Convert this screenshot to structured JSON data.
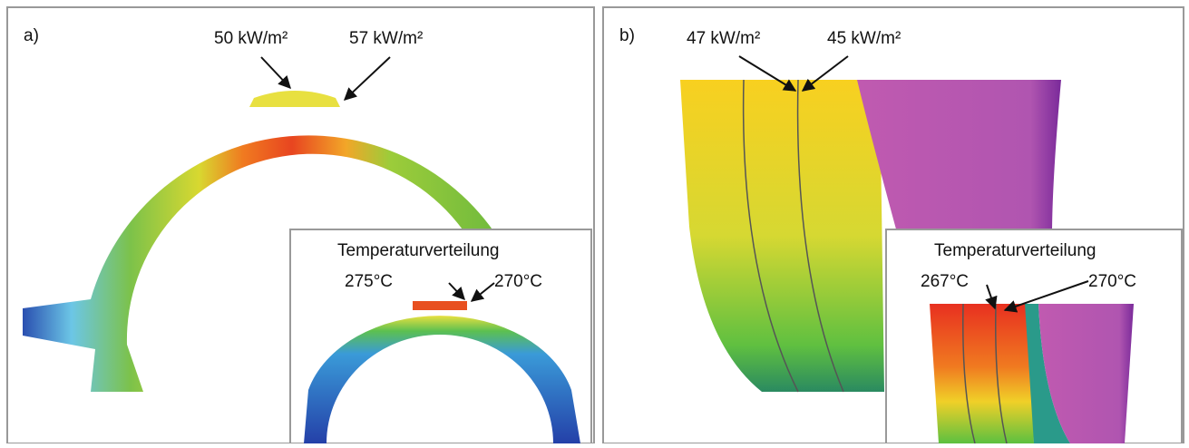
{
  "panels": [
    {
      "label": "a)",
      "annotations": [
        "50 kW/m²",
        "57 kW/m²"
      ],
      "inset": {
        "title": "Temperaturverteilung",
        "annotations": [
          "275°C",
          "270°C"
        ]
      }
    },
    {
      "label": "b)",
      "annotations": [
        "47 kW/m²",
        "45 kW/m²"
      ],
      "inset": {
        "title": "Temperaturverteilung",
        "annotations": [
          "267°C",
          "270°C"
        ]
      }
    }
  ]
}
